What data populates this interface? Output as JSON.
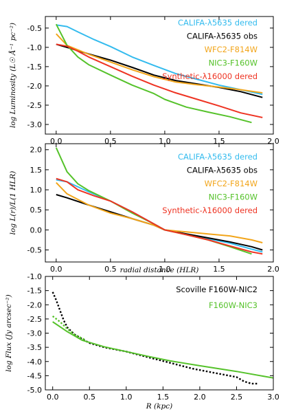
{
  "chart_data": [
    {
      "type": "line",
      "xlabel": "",
      "ylabel": "log Luminosity (L☉ Å⁻¹ pc⁻²)",
      "xlim": [
        -0.1,
        2.0
      ],
      "ylim": [
        -3.25,
        -0.2
      ],
      "xticks": [
        "0.0",
        "0.5",
        "1.0",
        "1.5",
        "2.0"
      ],
      "yticks": [
        "-0.5",
        "-1.0",
        "-1.5",
        "-2.0",
        "-2.5",
        "-3.0"
      ],
      "xtick_values": [
        0,
        0.5,
        1,
        1.5,
        2
      ],
      "ytick_values": [
        -0.5,
        -1,
        -1.5,
        -2,
        -2.5,
        -3
      ],
      "legend_position": "top-right",
      "series": [
        {
          "name": "CALIFA-λ5635 dered",
          "color": "#33bbee",
          "x": [
            0,
            0.1,
            0.2,
            0.35,
            0.5,
            0.7,
            0.9,
            1.1,
            1.3,
            1.5,
            1.7,
            1.9
          ],
          "y": [
            -0.42,
            -0.46,
            -0.6,
            -0.8,
            -0.98,
            -1.25,
            -1.47,
            -1.68,
            -1.83,
            -1.98,
            -2.1,
            -2.22
          ]
        },
        {
          "name": "CALIFA-λ5635 obs",
          "color": "#000000",
          "x": [
            0,
            0.1,
            0.3,
            0.5,
            0.7,
            0.9,
            1.1,
            1.3,
            1.5,
            1.7,
            1.9
          ],
          "y": [
            -0.92,
            -1.0,
            -1.17,
            -1.33,
            -1.52,
            -1.72,
            -1.86,
            -1.95,
            -2.04,
            -2.15,
            -2.3
          ]
        },
        {
          "name": "WFC2-F814W",
          "color": "#f2a51a",
          "x": [
            0,
            0.1,
            0.3,
            0.5,
            0.7,
            0.9,
            1.1,
            1.3,
            1.5,
            1.7,
            1.9
          ],
          "y": [
            -0.65,
            -0.95,
            -1.18,
            -1.38,
            -1.58,
            -1.76,
            -1.9,
            -1.97,
            -2.03,
            -2.1,
            -2.18
          ]
        },
        {
          "name": "NIC3-F160W",
          "color": "#55c22a",
          "x": [
            0,
            0.1,
            0.2,
            0.3,
            0.5,
            0.7,
            0.9,
            1.0,
            1.2,
            1.4,
            1.6,
            1.8
          ],
          "y": [
            -0.4,
            -0.95,
            -1.25,
            -1.45,
            -1.72,
            -1.98,
            -2.2,
            -2.35,
            -2.55,
            -2.68,
            -2.8,
            -2.95
          ]
        },
        {
          "name": "Synthetic-λ16000 dered",
          "color": "#ee3322",
          "x": [
            0,
            0.1,
            0.2,
            0.3,
            0.5,
            0.7,
            0.9,
            1.1,
            1.3,
            1.5,
            1.7,
            1.9
          ],
          "y": [
            -0.92,
            -0.97,
            -1.1,
            -1.25,
            -1.5,
            -1.75,
            -1.98,
            -2.18,
            -2.35,
            -2.52,
            -2.7,
            -2.82
          ]
        }
      ]
    },
    {
      "type": "line",
      "xlabel": "radial distance (HLR)",
      "ylabel": "log L(r)/L(1 HLR)",
      "xlim": [
        -0.1,
        2.0
      ],
      "ylim": [
        -0.8,
        2.15
      ],
      "xticks": [
        "0.0",
        "0.5",
        "1.0",
        "1.5",
        "2.0"
      ],
      "yticks": [
        "2.0",
        "1.5",
        "1.0",
        "0.5",
        "0.0",
        "-0.5"
      ],
      "xtick_values": [
        0,
        0.5,
        1,
        1.5,
        2
      ],
      "ytick_values": [
        2,
        1.5,
        1,
        0.5,
        0,
        -0.5
      ],
      "legend_position": "top-right",
      "series": [
        {
          "name": "CALIFA-λ5635 dered",
          "color": "#33bbee",
          "x": [
            0,
            0.1,
            0.3,
            0.5,
            0.7,
            0.9,
            1.0,
            1.2,
            1.4,
            1.6,
            1.8,
            1.9
          ],
          "y": [
            1.25,
            1.2,
            0.95,
            0.72,
            0.45,
            0.15,
            0,
            -0.1,
            -0.22,
            -0.33,
            -0.48,
            -0.55
          ]
        },
        {
          "name": "CALIFA-λ5635 obs",
          "color": "#000000",
          "x": [
            0,
            0.1,
            0.3,
            0.5,
            0.7,
            0.9,
            1.0,
            1.2,
            1.4,
            1.6,
            1.8,
            1.9
          ],
          "y": [
            0.88,
            0.8,
            0.62,
            0.45,
            0.28,
            0.12,
            0,
            -0.1,
            -0.2,
            -0.3,
            -0.42,
            -0.5
          ]
        },
        {
          "name": "WFC2-F814W",
          "color": "#f2a51a",
          "x": [
            0,
            0.1,
            0.3,
            0.5,
            0.7,
            0.9,
            1.0,
            1.2,
            1.4,
            1.6,
            1.8,
            1.9
          ],
          "y": [
            1.18,
            0.9,
            0.62,
            0.42,
            0.28,
            0.12,
            0,
            -0.05,
            -0.1,
            -0.15,
            -0.25,
            -0.32
          ]
        },
        {
          "name": "NIC3-F160W",
          "color": "#55c22a",
          "x": [
            0,
            0.1,
            0.2,
            0.3,
            0.5,
            0.7,
            0.9,
            1.0,
            1.2,
            1.4,
            1.6,
            1.8
          ],
          "y": [
            2.05,
            1.45,
            1.15,
            0.98,
            0.72,
            0.42,
            0.15,
            0,
            -0.12,
            -0.25,
            -0.42,
            -0.6
          ]
        },
        {
          "name": "Synthetic-λ16000 dered",
          "color": "#ee3322",
          "x": [
            0,
            0.1,
            0.2,
            0.35,
            0.5,
            0.7,
            0.9,
            1.0,
            1.2,
            1.4,
            1.6,
            1.8,
            1.9
          ],
          "y": [
            1.28,
            1.2,
            1.0,
            0.85,
            0.72,
            0.45,
            0.15,
            0,
            -0.12,
            -0.25,
            -0.4,
            -0.55,
            -0.6
          ]
        }
      ]
    },
    {
      "type": "line",
      "xlabel": "R (kpc)",
      "ylabel": "log Flux (Jy arcsec⁻²)",
      "xlim": [
        -0.1,
        3.0
      ],
      "ylim": [
        -5.0,
        -1.0
      ],
      "xticks": [
        "0.0",
        "0.5",
        "1.0",
        "1.5",
        "2.0",
        "2.5",
        "3.0"
      ],
      "yticks": [
        "-1.0",
        "-1.5",
        "-2.0",
        "-2.5",
        "-3.0",
        "-3.5",
        "-4.0",
        "-4.5",
        "-5.0"
      ],
      "xtick_values": [
        0,
        0.5,
        1,
        1.5,
        2,
        2.5,
        3
      ],
      "ytick_values": [
        -1,
        -1.5,
        -2,
        -2.5,
        -3,
        -3.5,
        -4,
        -4.5,
        -5
      ],
      "legend_position": "top-right",
      "series": [
        {
          "name": "Scoville F160W-NIC2",
          "color": "#000000",
          "dashed": true,
          "x": [
            0,
            0.05,
            0.1,
            0.15,
            0.2,
            0.3,
            0.4,
            0.5,
            0.7,
            1.0,
            1.3,
            1.6,
            1.9,
            2.2,
            2.5,
            2.6,
            2.7,
            2.8
          ],
          "y": [
            -1.55,
            -1.85,
            -2.2,
            -2.55,
            -2.8,
            -3.05,
            -3.2,
            -3.35,
            -3.5,
            -3.65,
            -3.85,
            -4.05,
            -4.25,
            -4.4,
            -4.55,
            -4.7,
            -4.78,
            -4.78
          ]
        },
        {
          "name": "",
          "color": "#55c22a",
          "dashed": true,
          "x": [
            0,
            0.1,
            0.2,
            0.3,
            0.45
          ],
          "y": [
            -2.4,
            -2.6,
            -2.85,
            -3.05,
            -3.25
          ]
        },
        {
          "name": "F160W-NIC3",
          "color": "#55c22a",
          "x": [
            0,
            0.2,
            0.4,
            0.7,
            1.0,
            1.3,
            1.6,
            2.0,
            2.5,
            3.0
          ],
          "y": [
            -2.6,
            -2.95,
            -3.25,
            -3.48,
            -3.65,
            -3.82,
            -3.98,
            -4.15,
            -4.35,
            -4.58
          ]
        }
      ]
    }
  ]
}
